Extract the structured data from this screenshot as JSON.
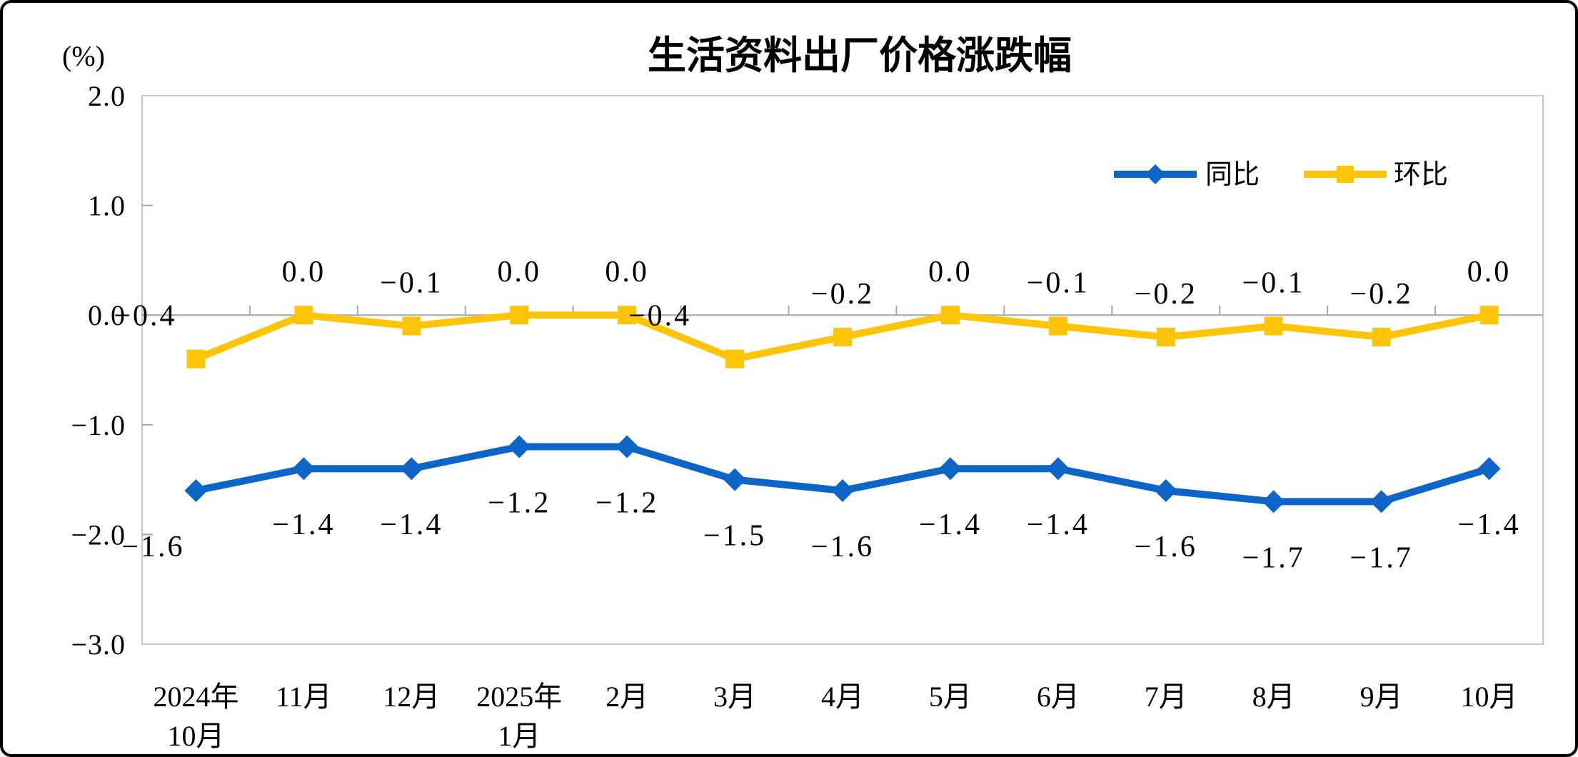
{
  "chart_data": {
    "type": "line",
    "title": "生活资料出厂价格涨跌幅",
    "unit_label": "(%)",
    "categories": [
      [
        "2024年",
        "10月"
      ],
      [
        "11月"
      ],
      [
        "12月"
      ],
      [
        "2025年",
        "1月"
      ],
      [
        "2月"
      ],
      [
        "3月"
      ],
      [
        "4月"
      ],
      [
        "5月"
      ],
      [
        "6月"
      ],
      [
        "7月"
      ],
      [
        "8月"
      ],
      [
        "9月"
      ],
      [
        "10月"
      ]
    ],
    "series": [
      {
        "name": "同比",
        "marker": "diamond",
        "color": "#0D65C8",
        "values": [
          -1.6,
          -1.4,
          -1.4,
          -1.2,
          -1.2,
          -1.5,
          -1.6,
          -1.4,
          -1.4,
          -1.6,
          -1.7,
          -1.7,
          -1.4
        ],
        "labels": [
          "−1.6",
          "−1.4",
          "−1.4",
          "−1.2",
          "−1.2",
          "−1.5",
          "−1.6",
          "−1.4",
          "−1.4",
          "−1.6",
          "−1.7",
          "−1.7",
          "−1.4"
        ]
      },
      {
        "name": "环比",
        "marker": "square",
        "color": "#FDC50A",
        "values": [
          -0.4,
          0.0,
          -0.1,
          0.0,
          0.0,
          -0.4,
          -0.2,
          0.0,
          -0.1,
          -0.2,
          -0.1,
          -0.2,
          0.0
        ],
        "labels": [
          "−0.4",
          "0.0",
          "−0.1",
          "0.0",
          "0.0",
          "−0.4",
          "−0.2",
          "0.0",
          "−0.1",
          "−0.2",
          "−0.1",
          "−0.2",
          "0.0"
        ]
      }
    ],
    "ylim": [
      -3.0,
      2.0
    ],
    "yticks": [
      2.0,
      1.0,
      0.0,
      -1.0,
      -2.0,
      -3.0
    ],
    "ytick_labels": [
      "2.0",
      "1.0",
      "0.0",
      "−1.0",
      "−2.0",
      "−3.0"
    ],
    "legend_position": "top-right-inside",
    "grid": false,
    "axis_color": "#A6A6A6",
    "border_color": "#C8C8C8"
  }
}
